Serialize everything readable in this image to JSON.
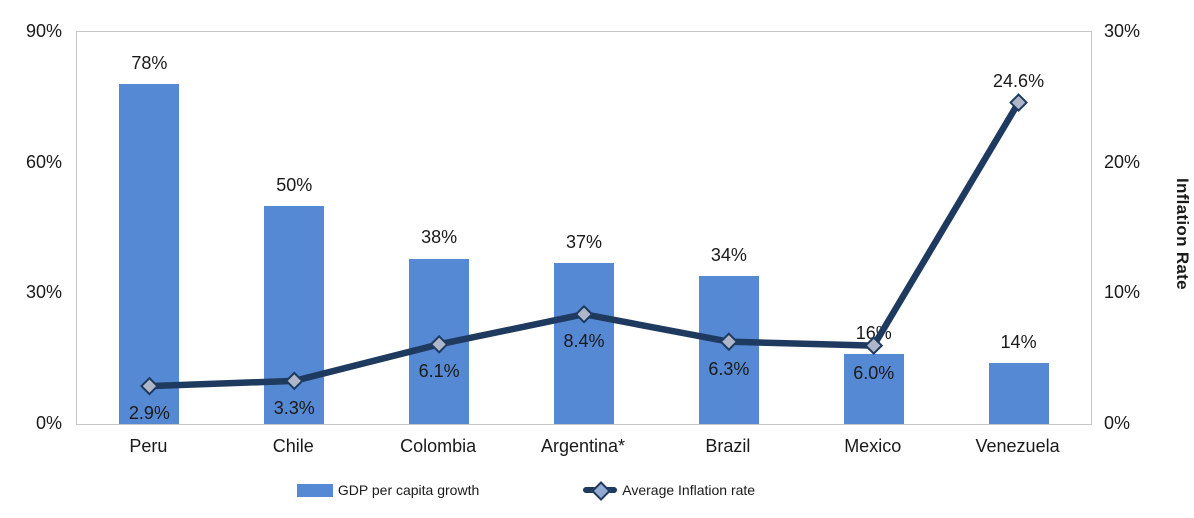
{
  "chart_data": {
    "type": "bar",
    "subtype": "combo-bar-line-dual-axis",
    "categories": [
      "Peru",
      "Chile",
      "Colombia",
      "Argentina*",
      "Brazil",
      "Mexico",
      "Venezuela"
    ],
    "series": [
      {
        "name": "GDP per capita growth",
        "render": "bar",
        "axis": "left",
        "values": [
          78,
          50,
          38,
          37,
          34,
          16,
          14
        ],
        "labels": [
          "78%",
          "50%",
          "38%",
          "37%",
          "34%",
          "16%",
          "14%"
        ],
        "color": "#5689D3"
      },
      {
        "name": "Average Inflation rate",
        "render": "line",
        "axis": "right",
        "values": [
          2.9,
          3.3,
          6.1,
          8.4,
          6.3,
          6.0,
          24.6
        ],
        "labels": [
          "2.9%",
          "3.3%",
          "6.1%",
          "8.4%",
          "6.3%",
          "6.0%",
          "24.6%"
        ],
        "labels_above": [
          6
        ],
        "color": "#1E3A5F",
        "marker_fill": "#AEB6C9"
      }
    ],
    "left_axis": {
      "ticks": [
        "0%",
        "30%",
        "60%",
        "90%"
      ],
      "min": 0,
      "max": 90
    },
    "right_axis": {
      "ticks": [
        "0%",
        "10%",
        "20%",
        "30%"
      ],
      "min": 0,
      "max": 30,
      "title": "Inflation Rate"
    },
    "grid": "off",
    "legend_position": "bottom-center",
    "plot_border_color": "#c6c6c6",
    "title": ""
  }
}
